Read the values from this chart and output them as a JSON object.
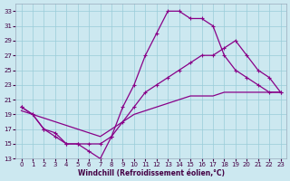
{
  "xlabel": "Windchill (Refroidissement éolien,°C)",
  "xlim": [
    -0.5,
    23.5
  ],
  "ylim": [
    13,
    34
  ],
  "yticks": [
    13,
    15,
    17,
    19,
    21,
    23,
    25,
    27,
    29,
    31,
    33
  ],
  "xticks": [
    0,
    1,
    2,
    3,
    4,
    5,
    6,
    7,
    8,
    9,
    10,
    11,
    12,
    13,
    14,
    15,
    16,
    17,
    18,
    19,
    20,
    21,
    22,
    23
  ],
  "bg_color": "#cce8f0",
  "grid_color": "#99ccd9",
  "line_color": "#880088",
  "line1_y": [
    20,
    19,
    17,
    16,
    15,
    15,
    14,
    13,
    16,
    20,
    23,
    27,
    30,
    33,
    33,
    32,
    32,
    31,
    27,
    25,
    24,
    23,
    22,
    22
  ],
  "line2_y": [
    20,
    19,
    17,
    16.5,
    15,
    15,
    15,
    15,
    16,
    18,
    20,
    22,
    23,
    24,
    25,
    26,
    27,
    27,
    28,
    29,
    27,
    25,
    24,
    22
  ],
  "line3_y": [
    19.5,
    19,
    18.5,
    18,
    17.5,
    17,
    16.5,
    16,
    17,
    18,
    19,
    19.5,
    20,
    20.5,
    21,
    21.5,
    21.5,
    21.5,
    22,
    22,
    22,
    22,
    22,
    22
  ]
}
